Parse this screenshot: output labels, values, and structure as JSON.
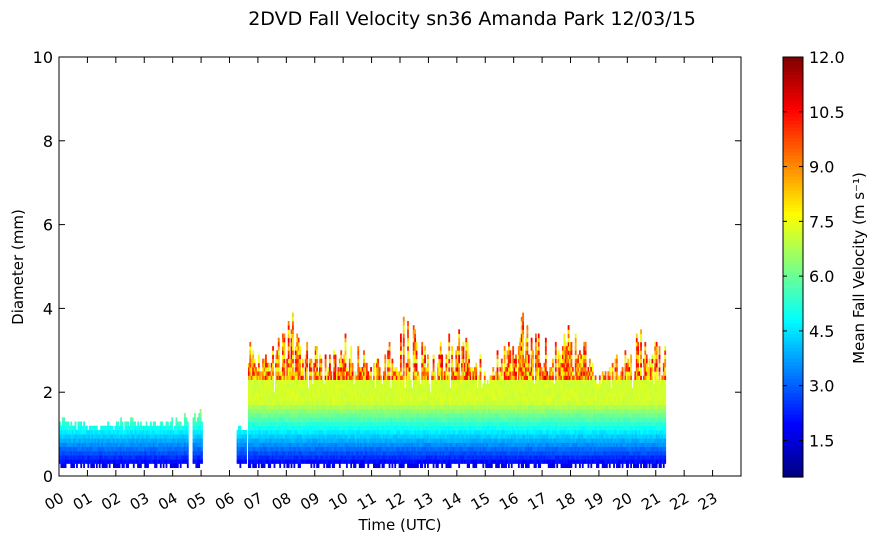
{
  "chart_data": {
    "type": "heatmap",
    "title": "2DVD Fall Velocity sn36 Amanda Park 12/03/15",
    "xlabel": "Time (UTC)",
    "ylabel": "Diameter (mm)",
    "xlim": [
      0,
      24
    ],
    "ylim": [
      0,
      10
    ],
    "x_ticks": [
      "00",
      "01",
      "02",
      "03",
      "04",
      "05",
      "06",
      "07",
      "08",
      "09",
      "10",
      "11",
      "12",
      "13",
      "14",
      "15",
      "16",
      "17",
      "18",
      "19",
      "20",
      "21",
      "22",
      "23"
    ],
    "y_ticks": [
      0,
      2,
      4,
      6,
      8,
      10
    ],
    "colorbar": {
      "label": "Mean Fall Velocity (m s⁻¹)",
      "range": [
        0.5,
        12.0
      ],
      "ticks": [
        "1.5",
        "3.0",
        "4.5",
        "6.0",
        "7.5",
        "9.0",
        "10.5",
        "12.0"
      ],
      "colormap": "jet"
    },
    "grid": false,
    "bin_width_hours": 0.05,
    "bin_height_mm": 0.1,
    "data_segments": [
      {
        "start_hour": 0.0,
        "end_hour": 4.55,
        "max_diameter_mm": [
          0.9,
          1.5
        ],
        "peak_velocity_ms": 3.5
      },
      {
        "start_hour": 4.7,
        "end_hour": 5.05,
        "max_diameter_mm": [
          1.0,
          1.7
        ],
        "peak_velocity_ms": 4.5
      },
      {
        "start_hour": 6.25,
        "end_hour": 6.6,
        "max_diameter_mm": [
          0.8,
          1.5
        ],
        "peak_velocity_ms": 4.5
      },
      {
        "start_hour": 6.65,
        "end_hour": 21.35,
        "max_diameter_mm": [
          1.1,
          4.3
        ],
        "peak_velocity_ms": 10.8
      }
    ]
  }
}
